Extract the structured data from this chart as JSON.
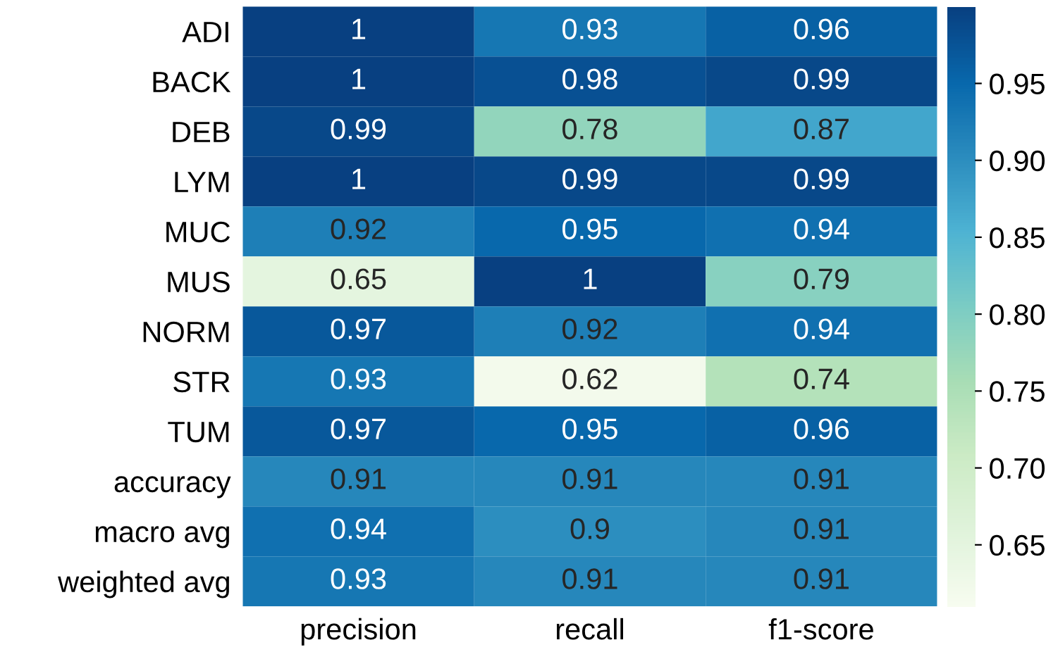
{
  "chart_data": {
    "type": "heatmap",
    "categories": [
      "precision",
      "recall",
      "f1-score"
    ],
    "y_categories": [
      "ADI",
      "BACK",
      "DEB",
      "LYM",
      "MUC",
      "MUS",
      "NORM",
      "STR",
      "TUM",
      "accuracy",
      "macro avg",
      "weighted avg"
    ],
    "cells": [
      [
        1,
        0.93,
        0.96
      ],
      [
        1,
        0.98,
        0.99
      ],
      [
        0.99,
        0.78,
        0.87
      ],
      [
        1,
        0.99,
        0.99
      ],
      [
        0.92,
        0.95,
        0.94
      ],
      [
        0.65,
        1,
        0.79
      ],
      [
        0.97,
        0.92,
        0.94
      ],
      [
        0.93,
        0.62,
        0.74
      ],
      [
        0.97,
        0.95,
        0.96
      ],
      [
        0.91,
        0.91,
        0.91
      ],
      [
        0.94,
        0.9,
        0.91
      ],
      [
        0.93,
        0.91,
        0.91
      ]
    ],
    "clim": [
      0.61,
      1.0
    ],
    "cticks": [
      {
        "value": 0.65,
        "label": "0.65"
      },
      {
        "value": 0.7,
        "label": "0.70"
      },
      {
        "value": 0.75,
        "label": "0.75"
      },
      {
        "value": 0.8,
        "label": "0.80"
      },
      {
        "value": 0.85,
        "label": "0.85"
      },
      {
        "value": 0.9,
        "label": "0.90"
      },
      {
        "value": 0.95,
        "label": "0.95"
      }
    ],
    "data_labels": true
  }
}
